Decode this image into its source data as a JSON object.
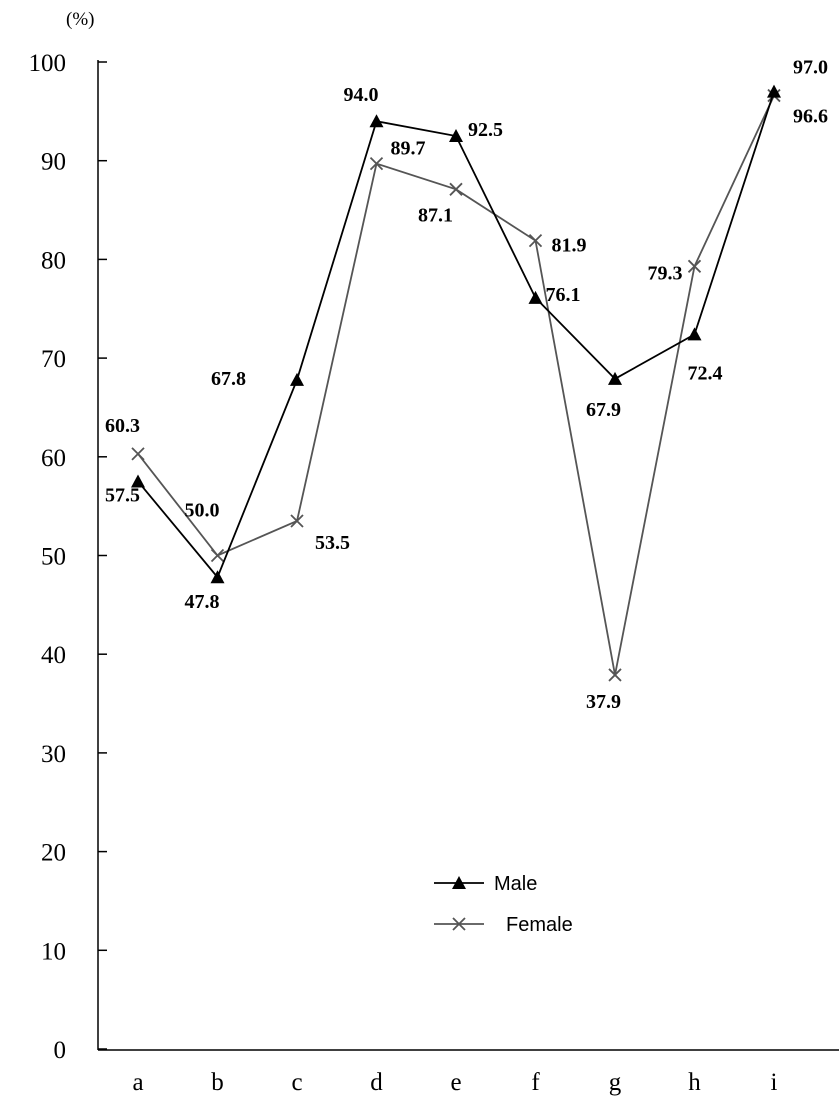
{
  "chart_data": {
    "type": "line",
    "y_unit_label": "(%)",
    "categories": [
      "a",
      "b",
      "c",
      "d",
      "e",
      "f",
      "g",
      "h",
      "i"
    ],
    "ylim": [
      0,
      100
    ],
    "yticks": [
      "0",
      "10",
      "20",
      "30",
      "40",
      "50",
      "60",
      "70",
      "80",
      "90",
      "100"
    ],
    "grid": false,
    "legend_position": "lower-center",
    "series": [
      {
        "name": "Male",
        "marker": "triangle",
        "color": "#000000",
        "values": [
          57.5,
          47.8,
          67.8,
          94.0,
          92.5,
          76.1,
          67.9,
          72.4,
          97.0
        ],
        "labels": [
          "57.5",
          "47.8",
          "67.8",
          "94.0",
          "92.5",
          "76.1",
          "67.9",
          "72.4",
          "97.0"
        ]
      },
      {
        "name": "Female",
        "marker": "x",
        "color": "#555555",
        "values": [
          60.3,
          50.0,
          53.5,
          89.7,
          87.1,
          81.9,
          37.9,
          79.3,
          96.6
        ],
        "labels": [
          "60.3",
          "50.0",
          "53.5",
          "89.7",
          "87.1",
          "81.9",
          "37.9",
          "79.3",
          "96.6"
        ]
      }
    ]
  }
}
